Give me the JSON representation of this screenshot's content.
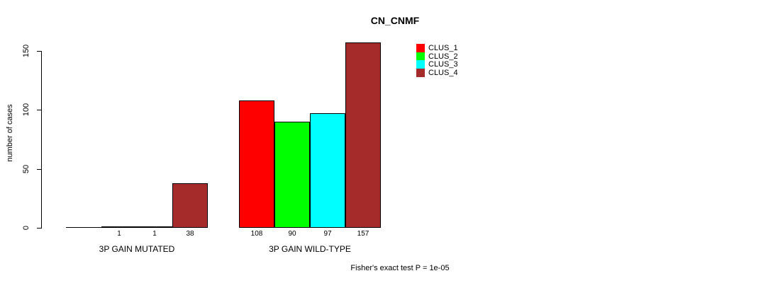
{
  "title": "CN_CNMF",
  "footnote": "Fisher's exact test P = 1e-05",
  "chart_data": {
    "type": "bar",
    "title": "CN_CNMF",
    "xlabel": "",
    "ylabel": "number of cases",
    "ylim": [
      0,
      150
    ],
    "yticks": [
      0,
      50,
      100,
      150
    ],
    "grid": false,
    "legend_position": "top-right",
    "categories": [
      "3P GAIN MUTATED",
      "3P GAIN WILD-TYPE"
    ],
    "series": [
      {
        "name": "CLUS_1",
        "color": "#ff0000",
        "values": [
          0,
          108
        ],
        "bar_labels": [
          "",
          "108"
        ]
      },
      {
        "name": "CLUS_2",
        "color": "#00ff00",
        "values": [
          1,
          90
        ],
        "bar_labels": [
          "1",
          "90"
        ]
      },
      {
        "name": "CLUS_3",
        "color": "#00ffff",
        "values": [
          1,
          97
        ],
        "bar_labels": [
          "1",
          "97"
        ]
      },
      {
        "name": "CLUS_4",
        "color": "#a52a2a",
        "values": [
          38,
          157
        ],
        "bar_labels": [
          "38",
          "157"
        ]
      }
    ],
    "annotation": "Fisher's exact test P = 1e-05"
  }
}
